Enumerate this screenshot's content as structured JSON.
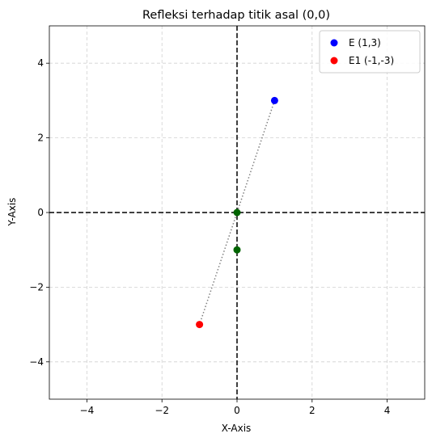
{
  "chart_data": {
    "type": "scatter",
    "title": "Refleksi terhadap titik asal (0,0)",
    "xlabel": "X-Axis",
    "ylabel": "Y-Axis",
    "xlim": [
      -5,
      5
    ],
    "ylim": [
      -5,
      5
    ],
    "xticks": [
      -4,
      -2,
      0,
      2,
      4
    ],
    "yticks": [
      -4,
      -2,
      0,
      2,
      4
    ],
    "grid": true,
    "legend_position": "top-right",
    "series": [
      {
        "name": "E (1,3)",
        "color": "#0000ff",
        "points": [
          [
            1,
            3
          ]
        ]
      },
      {
        "name": "E1 (-1,-3)",
        "color": "#ff0000",
        "points": [
          [
            -1,
            -3
          ]
        ]
      }
    ],
    "extra_points": [
      {
        "x": 0,
        "y": 0,
        "color": "#006400"
      },
      {
        "x": 0,
        "y": -1,
        "color": "#006400"
      }
    ],
    "connector": {
      "from": [
        1,
        3
      ],
      "to": [
        -1,
        -3
      ],
      "color": "#808080",
      "style": "dotted"
    },
    "reference_lines": [
      {
        "axis": "x",
        "value": 0,
        "color": "#000000",
        "style": "dashed"
      },
      {
        "axis": "y",
        "value": 0,
        "color": "#000000",
        "style": "dashed"
      }
    ]
  }
}
